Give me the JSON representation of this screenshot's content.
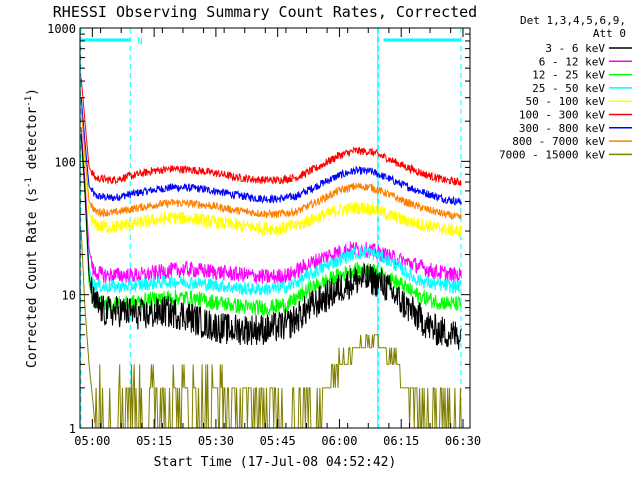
{
  "chart_data": {
    "type": "line",
    "title": "RHESSI Observing Summary Count Rates, Corrected",
    "xlabel": "Start Time (17-Jul-08 04:52:42)",
    "ylabel_main": "Corrected Count Rate (s",
    "ylabel_sup1": "-1",
    "ylabel_mid": " detector",
    "ylabel_sup2": "-1",
    "ylabel_end": ")",
    "yscale": "log",
    "ylim": [
      1,
      1000
    ],
    "xlim_minutes": [
      4.3,
      99.0
    ],
    "x_ticks": [
      {
        "label": "05:00",
        "minute": 7.3
      },
      {
        "label": "05:15",
        "minute": 22.3
      },
      {
        "label": "05:30",
        "minute": 37.3
      },
      {
        "label": "05:45",
        "minute": 52.3
      },
      {
        "label": "06:00",
        "minute": 67.3
      },
      {
        "label": "06:15",
        "minute": 82.3
      },
      {
        "label": "06:30",
        "minute": 97.3
      }
    ],
    "y_ticks": [
      {
        "label": "1",
        "value": 1
      },
      {
        "label": "10",
        "value": 10
      },
      {
        "label": "100",
        "value": 100
      },
      {
        "label": "1000",
        "value": 1000
      }
    ],
    "legend": {
      "position": "right",
      "header": [
        "Det 1,3,4,5,6,9,",
        "Att 0"
      ]
    },
    "markers": {
      "dashed_lines_minutes": [
        4.5,
        16.5,
        76.8,
        96.8
      ],
      "solid_lines_minutes": [
        76.6
      ],
      "night_bars": [
        [
          4.5,
          16.5
        ],
        [
          78.0,
          96.8
        ]
      ],
      "night_label": "N",
      "marker_color": "#00ffff"
    },
    "series": [
      {
        "name": "3 - 6 keV",
        "color": "#000000",
        "noise": 0.12,
        "points": [
          [
            4.6,
            160
          ],
          [
            5.5,
            60
          ],
          [
            6.5,
            14
          ],
          [
            7.5,
            9
          ],
          [
            10,
            7.5
          ],
          [
            15,
            7.5
          ],
          [
            20,
            7
          ],
          [
            25,
            7.5
          ],
          [
            30,
            7
          ],
          [
            35,
            6
          ],
          [
            40,
            5.5
          ],
          [
            45,
            5.5
          ],
          [
            50,
            5.5
          ],
          [
            55,
            6
          ],
          [
            60,
            8
          ],
          [
            65,
            10
          ],
          [
            69,
            12
          ],
          [
            72,
            13
          ],
          [
            75,
            13
          ],
          [
            78,
            12
          ],
          [
            82,
            9
          ],
          [
            86,
            7
          ],
          [
            90,
            5.5
          ],
          [
            95,
            5
          ]
        ]
      },
      {
        "name": "6 - 12 keV",
        "color": "#ff00ff",
        "noise": 0.06,
        "points": [
          [
            4.6,
            180
          ],
          [
            5.5,
            70
          ],
          [
            6.5,
            22
          ],
          [
            7.5,
            15
          ],
          [
            10,
            14
          ],
          [
            15,
            14
          ],
          [
            20,
            14
          ],
          [
            25,
            15
          ],
          [
            30,
            15.5
          ],
          [
            35,
            15
          ],
          [
            40,
            14.5
          ],
          [
            45,
            14
          ],
          [
            50,
            13.5
          ],
          [
            55,
            14
          ],
          [
            60,
            17
          ],
          [
            65,
            20
          ],
          [
            70,
            22
          ],
          [
            73,
            22
          ],
          [
            76,
            21
          ],
          [
            80,
            19
          ],
          [
            85,
            17
          ],
          [
            90,
            15
          ],
          [
            95,
            14
          ]
        ]
      },
      {
        "name": "12 - 25 keV",
        "color": "#00ff00",
        "noise": 0.06,
        "points": [
          [
            4.6,
            150
          ],
          [
            5.5,
            55
          ],
          [
            6.5,
            12
          ],
          [
            7.5,
            9
          ],
          [
            10,
            8.5
          ],
          [
            15,
            8.5
          ],
          [
            20,
            9
          ],
          [
            25,
            9.5
          ],
          [
            30,
            9.5
          ],
          [
            35,
            9
          ],
          [
            40,
            8.5
          ],
          [
            45,
            8
          ],
          [
            50,
            8
          ],
          [
            55,
            8.5
          ],
          [
            60,
            11
          ],
          [
            65,
            13
          ],
          [
            70,
            15
          ],
          [
            74,
            15.5
          ],
          [
            78,
            14
          ],
          [
            82,
            12
          ],
          [
            86,
            10
          ],
          [
            90,
            9
          ],
          [
            95,
            8.5
          ]
        ]
      },
      {
        "name": "25 - 50 keV",
        "color": "#00ffff",
        "noise": 0.05,
        "points": [
          [
            4.6,
            160
          ],
          [
            5.5,
            60
          ],
          [
            6.5,
            16
          ],
          [
            7.5,
            12
          ],
          [
            10,
            11.5
          ],
          [
            15,
            11.5
          ],
          [
            20,
            12
          ],
          [
            25,
            12.5
          ],
          [
            30,
            12.5
          ],
          [
            35,
            12
          ],
          [
            40,
            11.5
          ],
          [
            45,
            11
          ],
          [
            50,
            11
          ],
          [
            55,
            11.5
          ],
          [
            60,
            14
          ],
          [
            65,
            17
          ],
          [
            70,
            20
          ],
          [
            74,
            21
          ],
          [
            78,
            19
          ],
          [
            82,
            16
          ],
          [
            86,
            13
          ],
          [
            90,
            12
          ],
          [
            95,
            11.5
          ]
        ]
      },
      {
        "name": "50 - 100 keV",
        "color": "#ffff00",
        "noise": 0.05,
        "points": [
          [
            4.6,
            180
          ],
          [
            5.5,
            90
          ],
          [
            6.5,
            40
          ],
          [
            8,
            33
          ],
          [
            12,
            32
          ],
          [
            17,
            34
          ],
          [
            22,
            36
          ],
          [
            27,
            38
          ],
          [
            32,
            37
          ],
          [
            37,
            35
          ],
          [
            42,
            33
          ],
          [
            47,
            32
          ],
          [
            52,
            31
          ],
          [
            57,
            33
          ],
          [
            62,
            38
          ],
          [
            67,
            43
          ],
          [
            71,
            45
          ],
          [
            75,
            44
          ],
          [
            79,
            40
          ],
          [
            83,
            36
          ],
          [
            88,
            33
          ],
          [
            93,
            31
          ],
          [
            96,
            30
          ]
        ]
      },
      {
        "name": "100 - 300 keV",
        "color": "#ff0000",
        "noise": 0.03,
        "points": [
          [
            4.6,
            420
          ],
          [
            5.5,
            200
          ],
          [
            6.5,
            90
          ],
          [
            8,
            75
          ],
          [
            12,
            72
          ],
          [
            17,
            78
          ],
          [
            22,
            85
          ],
          [
            27,
            88
          ],
          [
            32,
            86
          ],
          [
            37,
            82
          ],
          [
            42,
            76
          ],
          [
            47,
            73
          ],
          [
            52,
            72
          ],
          [
            57,
            76
          ],
          [
            62,
            90
          ],
          [
            67,
            110
          ],
          [
            71,
            120
          ],
          [
            75,
            118
          ],
          [
            79,
            105
          ],
          [
            83,
            92
          ],
          [
            88,
            80
          ],
          [
            93,
            72
          ],
          [
            96,
            70
          ]
        ]
      },
      {
        "name": "300 - 800 keV",
        "color": "#0000ff",
        "noise": 0.03,
        "points": [
          [
            4.6,
            300
          ],
          [
            5.5,
            140
          ],
          [
            6.5,
            65
          ],
          [
            8,
            55
          ],
          [
            12,
            53
          ],
          [
            17,
            57
          ],
          [
            22,
            61
          ],
          [
            27,
            64
          ],
          [
            32,
            63
          ],
          [
            37,
            60
          ],
          [
            42,
            56
          ],
          [
            47,
            53
          ],
          [
            52,
            52
          ],
          [
            57,
            55
          ],
          [
            62,
            66
          ],
          [
            67,
            78
          ],
          [
            71,
            85
          ],
          [
            75,
            84
          ],
          [
            79,
            75
          ],
          [
            83,
            66
          ],
          [
            88,
            58
          ],
          [
            93,
            52
          ],
          [
            96,
            50
          ]
        ]
      },
      {
        "name": "800 - 7000 keV",
        "color": "#ff8000",
        "noise": 0.03,
        "points": [
          [
            4.6,
            250
          ],
          [
            5.5,
            110
          ],
          [
            6.5,
            50
          ],
          [
            8,
            42
          ],
          [
            12,
            41
          ],
          [
            17,
            44
          ],
          [
            22,
            47
          ],
          [
            27,
            49
          ],
          [
            32,
            48
          ],
          [
            37,
            46
          ],
          [
            42,
            43
          ],
          [
            47,
            41
          ],
          [
            52,
            40
          ],
          [
            57,
            42
          ],
          [
            62,
            50
          ],
          [
            67,
            60
          ],
          [
            71,
            65
          ],
          [
            75,
            64
          ],
          [
            79,
            57
          ],
          [
            83,
            50
          ],
          [
            88,
            44
          ],
          [
            93,
            40
          ],
          [
            96,
            38
          ]
        ]
      },
      {
        "name": "7000 - 15000 keV",
        "color": "#808000",
        "noise": 0.0,
        "points": [
          [
            4.6,
            30
          ],
          [
            5.5,
            8
          ],
          [
            6.5,
            3
          ],
          [
            7.5,
            1.5
          ],
          [
            8,
            1
          ]
        ]
      }
    ]
  }
}
